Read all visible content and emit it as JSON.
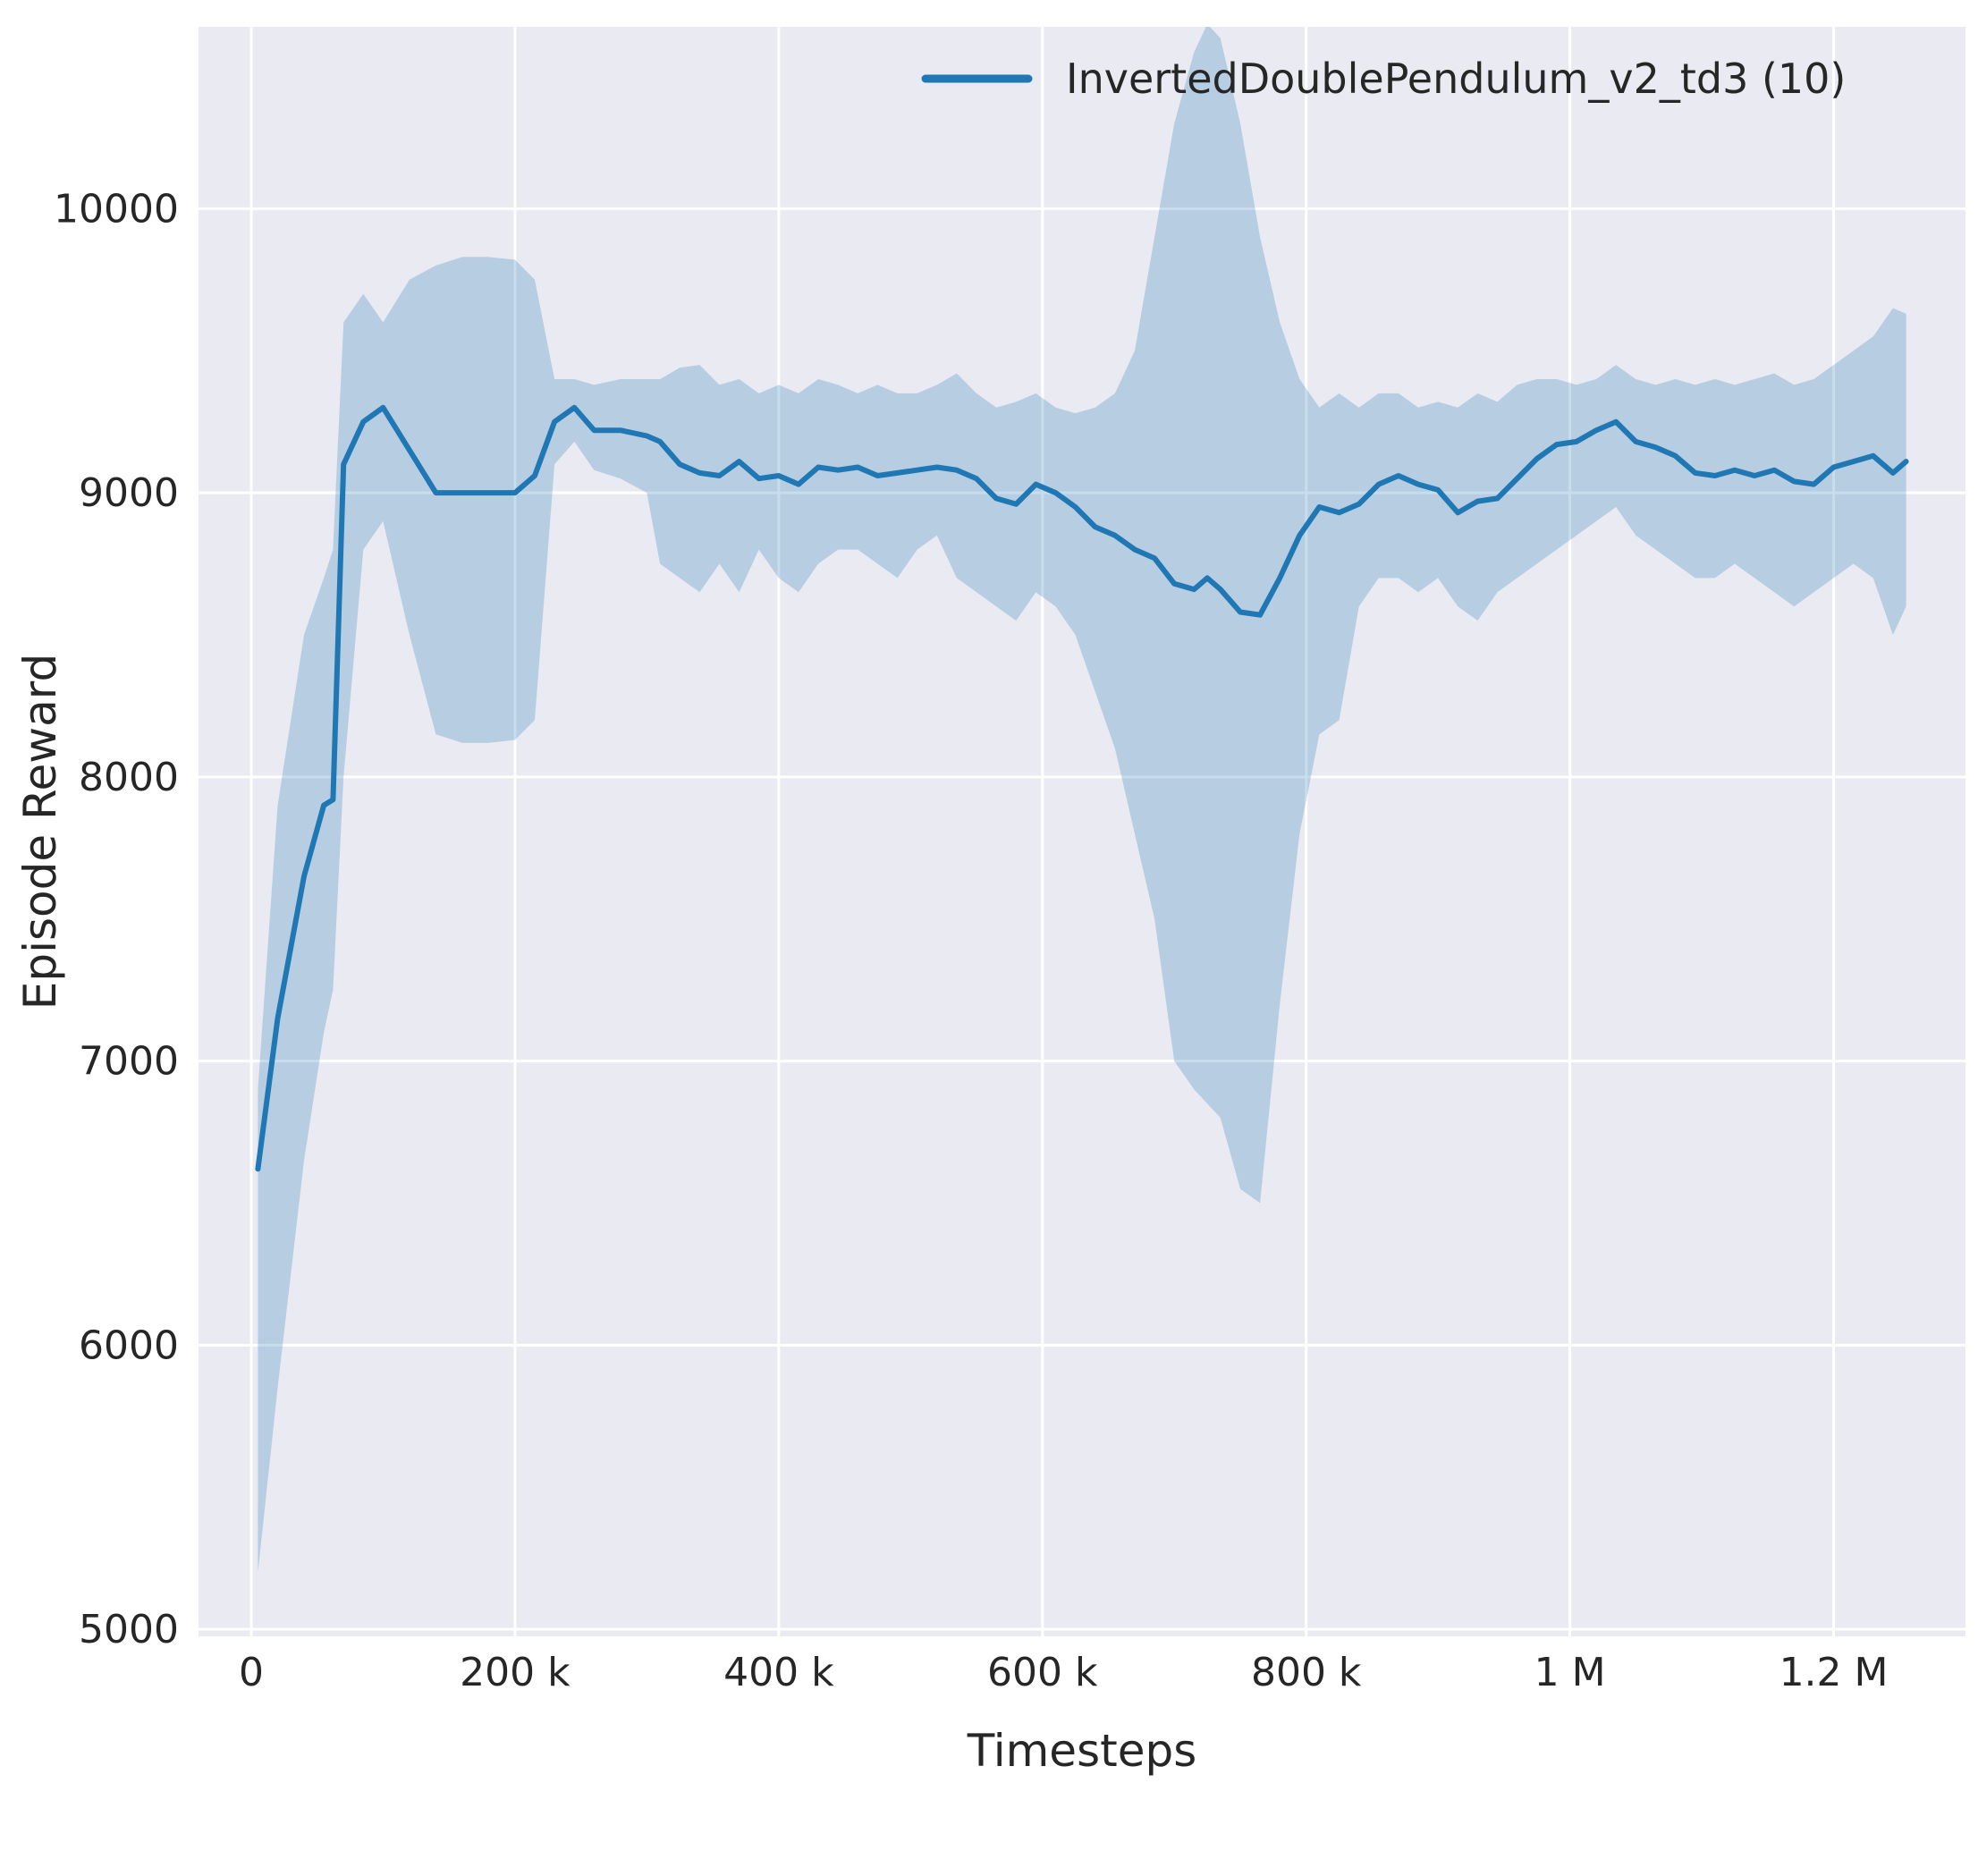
{
  "figure": {
    "background": "#ffffff",
    "axes_background": "#eaeaf2",
    "grid_color": "#ffffff",
    "text_color": "#262626"
  },
  "chart_data": {
    "type": "line",
    "title": "",
    "xlabel": "Timesteps",
    "ylabel": "Episode Reward",
    "grid": true,
    "xlim": [
      -40000,
      1300000
    ],
    "ylim": [
      4975,
      10640
    ],
    "x_ticks": {
      "values": [
        0,
        200000,
        400000,
        600000,
        800000,
        1000000,
        1200000
      ],
      "labels": [
        "0",
        "200 k",
        "400 k",
        "600 k",
        "800 k",
        "1 M",
        "1.2 M"
      ]
    },
    "y_ticks": {
      "values": [
        5000,
        6000,
        7000,
        8000,
        9000,
        10000
      ],
      "labels": [
        "5000",
        "6000",
        "7000",
        "8000",
        "9000",
        "10000"
      ]
    },
    "legend": {
      "position": "upper center-right",
      "frame": false,
      "entries": [
        {
          "label": "InvertedDoublePendulum_v2_td3 (10)",
          "color": "#1f77b4"
        }
      ]
    },
    "series": [
      {
        "name": "InvertedDoublePendulum_v2_td3 (10)",
        "color": "#1f77b4",
        "band_opacity": 0.25,
        "x": [
          5000,
          20000,
          40000,
          55000,
          62000,
          70000,
          85000,
          100000,
          120000,
          140000,
          160000,
          180000,
          200000,
          215000,
          230000,
          245000,
          260000,
          280000,
          300000,
          310000,
          325000,
          340000,
          355000,
          370000,
          385000,
          400000,
          415000,
          430000,
          445000,
          460000,
          475000,
          490000,
          505000,
          520000,
          535000,
          550000,
          565000,
          580000,
          595000,
          610000,
          625000,
          640000,
          655000,
          670000,
          685000,
          700000,
          715000,
          725000,
          735000,
          750000,
          765000,
          780000,
          795000,
          810000,
          825000,
          840000,
          855000,
          870000,
          885000,
          900000,
          915000,
          930000,
          945000,
          960000,
          975000,
          990000,
          1005000,
          1020000,
          1035000,
          1050000,
          1065000,
          1080000,
          1095000,
          1110000,
          1125000,
          1140000,
          1155000,
          1170000,
          1185000,
          1200000,
          1215000,
          1230000,
          1245000,
          1255000
        ],
        "mean": [
          6620,
          7150,
          7650,
          7900,
          7920,
          9100,
          9250,
          9300,
          9150,
          9000,
          9000,
          9000,
          9000,
          9060,
          9250,
          9300,
          9220,
          9220,
          9200,
          9180,
          9100,
          9070,
          9060,
          9110,
          9050,
          9060,
          9030,
          9090,
          9080,
          9090,
          9060,
          9070,
          9080,
          9090,
          9080,
          9050,
          8980,
          8960,
          9030,
          9000,
          8950,
          8880,
          8850,
          8800,
          8770,
          8680,
          8660,
          8700,
          8660,
          8580,
          8570,
          8700,
          8850,
          8950,
          8930,
          8960,
          9030,
          9060,
          9030,
          9010,
          8930,
          8970,
          8980,
          9050,
          9120,
          9170,
          9180,
          9220,
          9250,
          9180,
          9160,
          9130,
          9070,
          9060,
          9080,
          9060,
          9080,
          9040,
          9030,
          9090,
          9110,
          9130,
          9070,
          9110
        ],
        "band_low": [
          5200,
          5850,
          6650,
          7100,
          7250,
          8000,
          8800,
          8900,
          8500,
          8150,
          8120,
          8120,
          8130,
          8200,
          9100,
          9180,
          9080,
          9050,
          9000,
          8750,
          8700,
          8650,
          8750,
          8650,
          8800,
          8700,
          8650,
          8750,
          8800,
          8800,
          8750,
          8700,
          8800,
          8850,
          8700,
          8650,
          8600,
          8550,
          8650,
          8600,
          8500,
          8300,
          8100,
          7800,
          7500,
          7000,
          6900,
          6850,
          6800,
          6550,
          6500,
          7200,
          7800,
          8150,
          8200,
          8600,
          8700,
          8700,
          8650,
          8700,
          8600,
          8550,
          8650,
          8700,
          8750,
          8800,
          8850,
          8900,
          8950,
          8850,
          8800,
          8750,
          8700,
          8700,
          8750,
          8700,
          8650,
          8600,
          8650,
          8700,
          8750,
          8700,
          8500,
          8600
        ],
        "band_high": [
          6900,
          7900,
          8500,
          8700,
          8800,
          9600,
          9700,
          9600,
          9750,
          9800,
          9830,
          9830,
          9820,
          9750,
          9400,
          9400,
          9380,
          9400,
          9400,
          9400,
          9440,
          9450,
          9380,
          9400,
          9350,
          9380,
          9350,
          9400,
          9380,
          9350,
          9380,
          9350,
          9350,
          9380,
          9420,
          9350,
          9300,
          9320,
          9350,
          9300,
          9280,
          9300,
          9350,
          9500,
          9900,
          10300,
          10550,
          10650,
          10600,
          10300,
          9900,
          9600,
          9400,
          9300,
          9350,
          9300,
          9350,
          9350,
          9300,
          9320,
          9300,
          9350,
          9320,
          9380,
          9400,
          9400,
          9380,
          9400,
          9450,
          9400,
          9380,
          9400,
          9380,
          9400,
          9380,
          9400,
          9420,
          9380,
          9400,
          9450,
          9500,
          9550,
          9650,
          9630
        ]
      }
    ]
  }
}
